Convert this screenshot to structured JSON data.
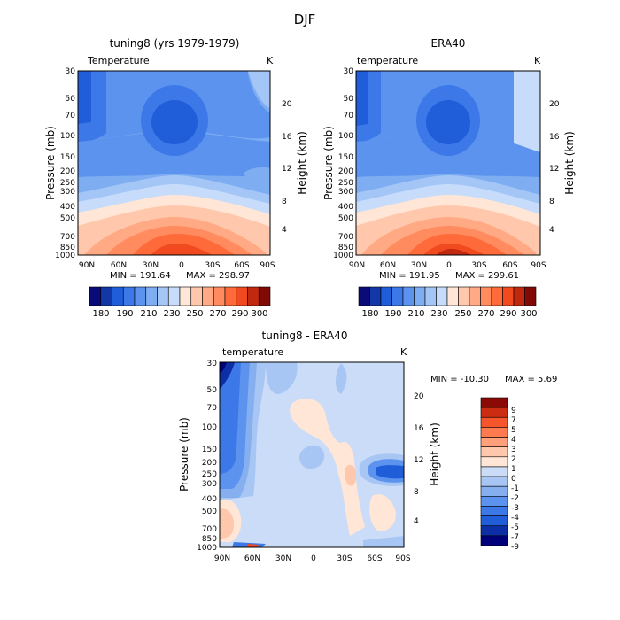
{
  "figure_title": "DJF",
  "palette": {
    "abs": [
      "#0a0a78",
      "#1238a8",
      "#1f5ed8",
      "#3d78e8",
      "#5b93ee",
      "#7fadf2",
      "#a3c6f6",
      "#c7dcfa",
      "#ffe6d6",
      "#ffc8ad",
      "#ffaa85",
      "#ff8b5f",
      "#ff6a3a",
      "#f04a1e",
      "#c02810",
      "#820a06"
    ],
    "diff": [
      "#00007a",
      "#0c2fa6",
      "#1f5ed8",
      "#3d78e8",
      "#5b93ee",
      "#85afef",
      "#a7c6f4",
      "#cbdcf8",
      "#ffe6d6",
      "#ffc8ad",
      "#ffa07a",
      "#ff7a4e",
      "#f6542a",
      "#cc2c12",
      "#8c0a06"
    ]
  },
  "chart_data": [
    {
      "type": "contour",
      "title": "tuning8 (yrs 1979-1979)",
      "variable_label": "Temperature",
      "units": "K",
      "ylabel": "Pressure (mb)",
      "ylabel_right": "Height (km)",
      "x_ticks": [
        "90N",
        "60N",
        "30N",
        "0",
        "30S",
        "60S",
        "90S"
      ],
      "y_ticks": [
        "30",
        "50",
        "70",
        "100",
        "150",
        "200",
        "250",
        "300",
        "400",
        "500",
        "700",
        "850",
        "1000"
      ],
      "height_ticks": [
        "20",
        "16",
        "12",
        "8",
        "4"
      ],
      "min_text": "MIN = 191.64",
      "max_text": "MAX = 298.97",
      "colorbar_labels": [
        "180",
        "190",
        "210",
        "230",
        "250",
        "270",
        "290",
        "300"
      ],
      "y_range_mb": [
        1000,
        30
      ]
    },
    {
      "type": "contour",
      "title": "ERA40",
      "variable_label": "temperature",
      "units": "K",
      "ylabel": "Pressure (mb)",
      "ylabel_right": "Height (km)",
      "x_ticks": [
        "90N",
        "60N",
        "30N",
        "0",
        "30S",
        "60S",
        "90S"
      ],
      "y_ticks": [
        "30",
        "50",
        "70",
        "100",
        "150",
        "200",
        "250",
        "300",
        "400",
        "500",
        "700",
        "850",
        "1000"
      ],
      "height_ticks": [
        "20",
        "16",
        "12",
        "8",
        "4"
      ],
      "min_text": "MIN = 191.95",
      "max_text": "MAX = 299.61",
      "colorbar_labels": [
        "180",
        "190",
        "210",
        "230",
        "250",
        "270",
        "290",
        "300"
      ],
      "y_range_mb": [
        1000,
        30
      ]
    },
    {
      "type": "contour",
      "title": "tuning8 - ERA40",
      "variable_label": "temperature",
      "units": "K",
      "ylabel": "Pressure (mb)",
      "ylabel_right": "Height (km)",
      "x_ticks": [
        "90N",
        "60N",
        "30N",
        "0",
        "30S",
        "60S",
        "90S"
      ],
      "y_ticks": [
        "30",
        "50",
        "70",
        "100",
        "150",
        "200",
        "250",
        "300",
        "400",
        "500",
        "700",
        "850",
        "1000"
      ],
      "height_ticks": [
        "20",
        "16",
        "12",
        "8",
        "4"
      ],
      "min_text": "MIN = -10.30",
      "max_text": "MAX =    5.69",
      "colorbar_labels": [
        "9",
        "7",
        "5",
        "4",
        "3",
        "2",
        "1",
        "0",
        "-1",
        "-2",
        "-3",
        "-4",
        "-5",
        "-7",
        "-9"
      ],
      "y_range_mb": [
        1000,
        30
      ]
    }
  ]
}
